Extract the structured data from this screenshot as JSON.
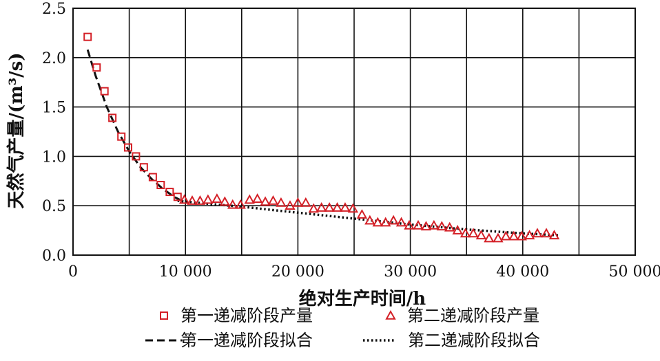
{
  "chart_data": {
    "type": "scatter",
    "title": "",
    "xlabel": "绝对生产时间/h",
    "ylabel": "天然气产量/(m³/s)",
    "xlim": [
      0,
      50000
    ],
    "ylim": [
      0,
      2.5
    ],
    "x_ticks": [
      "0",
      "10 000",
      "20 000",
      "30 000",
      "40 000",
      "50 000"
    ],
    "y_ticks": [
      "0.0",
      "0.5",
      "1.0",
      "1.5",
      "2.0",
      "2.5"
    ],
    "grid": true,
    "legend_position": "bottom",
    "series": [
      {
        "name": "第一递减阶段产量",
        "kind": "marker-square",
        "color": "#d42027",
        "x": [
          1300,
          2100,
          2800,
          3500,
          4300,
          4900,
          5600,
          6300,
          7100,
          7800,
          8600,
          9300
        ],
        "y": [
          2.21,
          1.9,
          1.66,
          1.39,
          1.2,
          1.09,
          1.0,
          0.89,
          0.79,
          0.71,
          0.64,
          0.59
        ]
      },
      {
        "name": "第二递减阶段产量",
        "kind": "marker-triangle",
        "color": "#d42027",
        "x": [
          9900,
          10600,
          11300,
          12000,
          12800,
          13500,
          14200,
          14900,
          15700,
          16400,
          17100,
          17800,
          18500,
          19300,
          20000,
          20700,
          21400,
          22100,
          22800,
          23500,
          24200,
          24900,
          25700,
          26400,
          27100,
          27800,
          28500,
          29200,
          29900,
          30700,
          31400,
          32100,
          32800,
          33500,
          34200,
          34900,
          35600,
          36300,
          37000,
          37800,
          38500,
          39200,
          39900,
          40600,
          41300,
          42100,
          42800
        ],
        "y": [
          0.56,
          0.55,
          0.55,
          0.56,
          0.57,
          0.54,
          0.51,
          0.51,
          0.56,
          0.57,
          0.54,
          0.55,
          0.53,
          0.5,
          0.53,
          0.53,
          0.47,
          0.48,
          0.48,
          0.48,
          0.48,
          0.47,
          0.41,
          0.35,
          0.33,
          0.33,
          0.35,
          0.33,
          0.3,
          0.3,
          0.29,
          0.3,
          0.29,
          0.28,
          0.25,
          0.22,
          0.22,
          0.2,
          0.17,
          0.17,
          0.19,
          0.19,
          0.19,
          0.2,
          0.22,
          0.22,
          0.2
        ]
      },
      {
        "name": "第一递减阶段拟合",
        "kind": "line-dashed",
        "color": "#111111",
        "x": [
          1300,
          2000,
          3000,
          4000,
          5000,
          6000,
          7000,
          8000,
          9000,
          9500
        ],
        "y": [
          2.08,
          1.82,
          1.5,
          1.25,
          1.05,
          0.89,
          0.77,
          0.67,
          0.59,
          0.56
        ]
      },
      {
        "name": "第二递减阶段拟合",
        "kind": "line-dotted",
        "color": "#111111",
        "x": [
          9300,
          12000,
          15000,
          20000,
          25000,
          30000,
          35000,
          40000,
          43300
        ],
        "y": [
          0.55,
          0.52,
          0.49,
          0.43,
          0.37,
          0.31,
          0.26,
          0.22,
          0.2
        ]
      }
    ]
  }
}
